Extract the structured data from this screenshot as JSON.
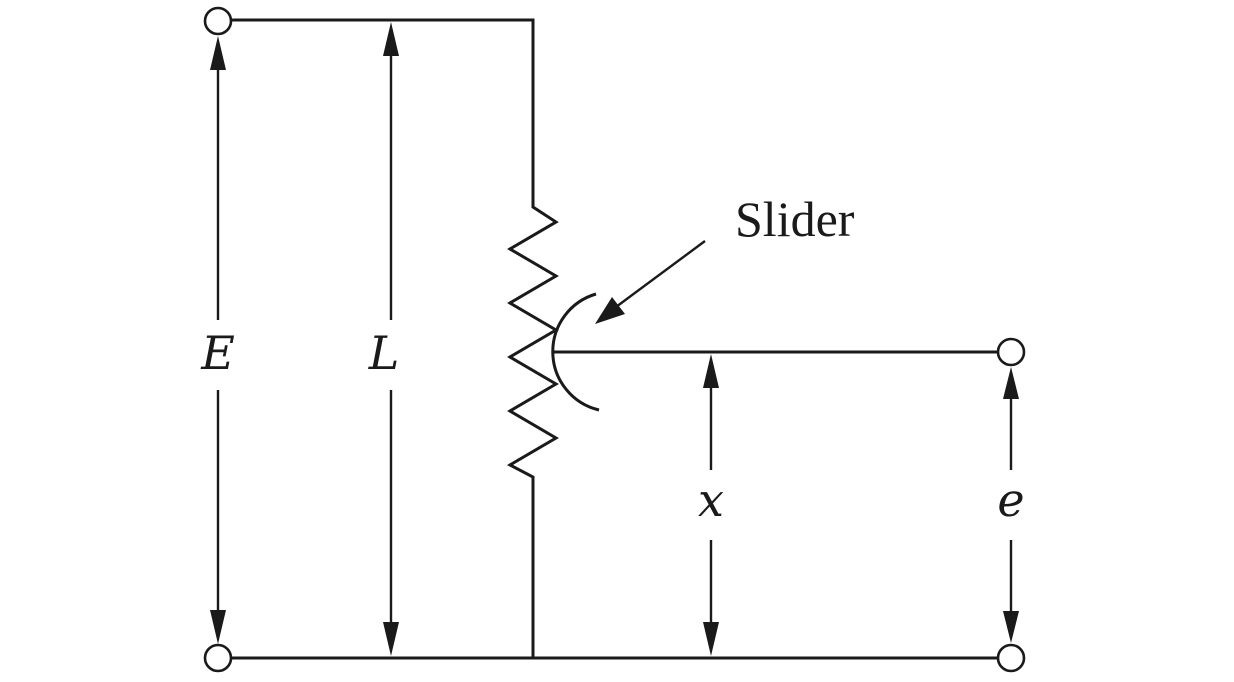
{
  "figure": {
    "labels": {
      "supply_voltage": "E",
      "total_length": "L",
      "slider_position": "x",
      "output_voltage": "e",
      "slider": "Slider"
    },
    "colors": {
      "line": "#1a1a1a",
      "background": "#ffffff"
    }
  }
}
